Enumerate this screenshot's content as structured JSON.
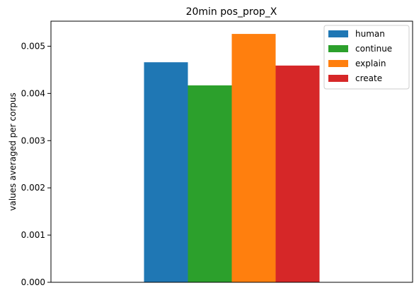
{
  "chart_data": {
    "type": "bar",
    "title": "20min pos_prop_X",
    "xlabel": "",
    "ylabel": "values averaged per corpus",
    "ylim": [
      0,
      0.00553
    ],
    "yticks": [
      "0.000",
      "0.001",
      "0.002",
      "0.003",
      "0.004",
      "0.005"
    ],
    "ytick_values": [
      0,
      0.001,
      0.002,
      0.003,
      0.004,
      0.005
    ],
    "grid": false,
    "legend_position": "top-right",
    "series": [
      {
        "name": "human",
        "value": 0.00466,
        "color": "#1f77b4"
      },
      {
        "name": "continue",
        "value": 0.00417,
        "color": "#2ca02c"
      },
      {
        "name": "explain",
        "value": 0.00526,
        "color": "#ff7f0e"
      },
      {
        "name": "create",
        "value": 0.00459,
        "color": "#d62728"
      }
    ]
  }
}
